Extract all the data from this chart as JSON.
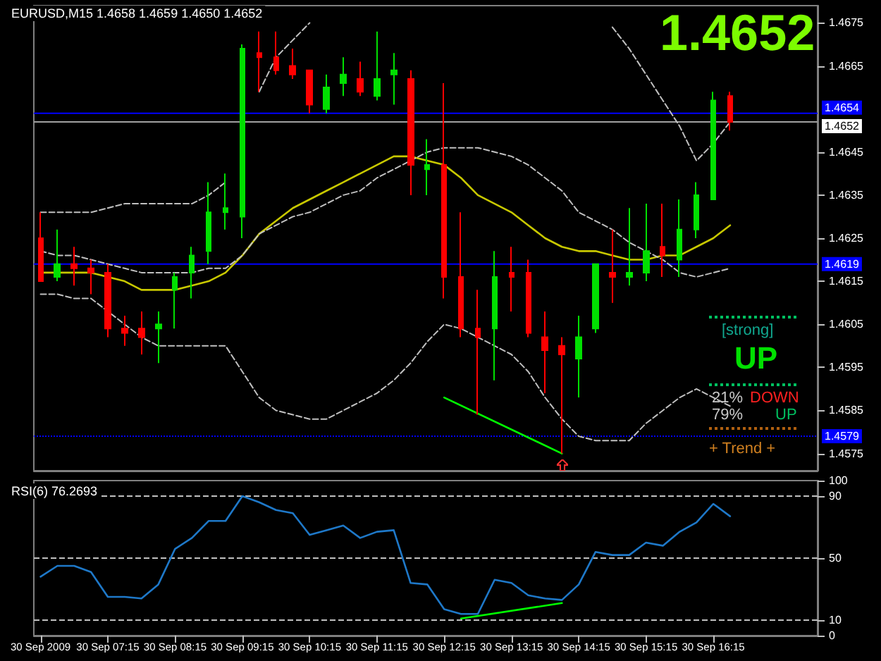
{
  "chart_data": [
    {
      "type": "candlestick",
      "title": "EURUSD,M15 1.4658 1.4659 1.4650 1.4652",
      "x": [
        "2009-09-30T06:15",
        "2009-09-30T06:30",
        "2009-09-30T06:45",
        "2009-09-30T07:00",
        "2009-09-30T07:15",
        "2009-09-30T07:30",
        "2009-09-30T07:45",
        "2009-09-30T08:00",
        "2009-09-30T08:15",
        "2009-09-30T08:30",
        "2009-09-30T08:45",
        "2009-09-30T09:00",
        "2009-09-30T09:15",
        "2009-09-30T09:30",
        "2009-09-30T09:45",
        "2009-09-30T10:00",
        "2009-09-30T10:15",
        "2009-09-30T10:30",
        "2009-09-30T10:45",
        "2009-09-30T11:00",
        "2009-09-30T11:15",
        "2009-09-30T11:30",
        "2009-09-30T11:45",
        "2009-09-30T12:00",
        "2009-09-30T12:15",
        "2009-09-30T12:30",
        "2009-09-30T12:45",
        "2009-09-30T13:00",
        "2009-09-30T13:15",
        "2009-09-30T13:30",
        "2009-09-30T13:45",
        "2009-09-30T14:00",
        "2009-09-30T14:15",
        "2009-09-30T14:30",
        "2009-09-30T14:45",
        "2009-09-30T15:00",
        "2009-09-30T15:15",
        "2009-09-30T15:30",
        "2009-09-30T15:45",
        "2009-09-30T16:00",
        "2009-09-30T16:15",
        "2009-09-30T16:30"
      ],
      "xlim": [
        "2009-09-30T06:09",
        "2009-09-30T17:48"
      ],
      "xticks": [
        {
          "value": "2009-09-30T06:15",
          "label": null
        },
        {
          "value": "2009-09-30T07:15",
          "label": null
        },
        {
          "value": "2009-09-30T08:15",
          "label": null
        },
        {
          "value": "2009-09-30T09:15",
          "label": null
        },
        {
          "value": "2009-09-30T10:15",
          "label": null
        },
        {
          "value": "2009-09-30T11:15",
          "label": null
        },
        {
          "value": "2009-09-30T12:15",
          "label": null
        },
        {
          "value": "2009-09-30T13:15",
          "label": null
        },
        {
          "value": "2009-09-30T14:15",
          "label": null
        },
        {
          "value": "2009-09-30T15:15",
          "label": null
        },
        {
          "value": "2009-09-30T16:15",
          "label": null
        }
      ],
      "tick_labels": "y",
      "ylim": [
        1.4571,
        1.4679
      ],
      "yticks": [
        1.4575,
        1.4585,
        1.4595,
        1.4605,
        1.4615,
        1.4625,
        1.4635,
        1.4645,
        1.4665,
        1.4675
      ],
      "series": [
        {
          "type": "line",
          "color": "#c8c800",
          "line_style": "solid",
          "values": [
            1.4617,
            1.4617,
            1.4617,
            1.4617,
            1.4616,
            1.4615,
            1.4613,
            1.4613,
            1.4613,
            1.4614,
            1.4615,
            1.4617,
            1.4621,
            1.4626,
            1.4629,
            1.4632,
            1.4634,
            1.4636,
            1.4638,
            1.464,
            1.4642,
            1.4644,
            1.4644,
            1.4643,
            1.4642,
            1.4639,
            1.4635,
            1.4633,
            1.4631,
            1.4628,
            1.4625,
            1.4623,
            1.4622,
            1.4622,
            1.4621,
            1.462,
            1.462,
            1.4621,
            1.4621,
            1.4623,
            1.4625,
            1.4628
          ]
        },
        {
          "type": "line",
          "color": "#c0c0c0",
          "line_style": "dashed",
          "values": [
            1.4631,
            1.4631,
            1.4631,
            1.4631,
            1.4632,
            1.4633,
            1.4633,
            1.4633,
            1.4633,
            1.4633,
            1.4635,
            1.4638,
            null,
            1.4659,
            1.4667,
            1.4671,
            1.4675,
            null,
            null,
            null,
            null,
            null,
            null,
            null,
            null,
            null,
            null,
            null,
            null,
            null,
            null,
            null,
            null,
            null,
            1.4674,
            1.4669,
            1.4663,
            1.4657,
            1.4651,
            1.4643,
            1.4647,
            1.4652
          ]
        },
        {
          "type": "line",
          "color": "#c0c0c0",
          "line_style": "dashed",
          "values": [
            1.4622,
            1.4621,
            1.4621,
            1.462,
            1.4619,
            1.4618,
            1.4617,
            1.4617,
            1.4617,
            1.4617,
            1.4618,
            1.4618,
            1.4621,
            1.4626,
            1.4628,
            1.463,
            1.4631,
            1.4633,
            1.4635,
            1.4636,
            1.4639,
            1.4641,
            1.4643,
            1.4645,
            1.4646,
            1.4646,
            1.4646,
            1.4645,
            1.4644,
            1.4642,
            1.4639,
            1.4636,
            1.4631,
            1.4629,
            1.4627,
            1.4624,
            1.4622,
            1.462,
            1.4617,
            1.4616,
            1.4617,
            1.4618
          ]
        },
        {
          "type": "line",
          "color": "#c0c0c0",
          "line_style": "dashed",
          "values": [
            1.4612,
            1.4612,
            1.4611,
            1.4611,
            1.4608,
            1.4605,
            1.4602,
            1.46,
            1.46,
            1.46,
            1.46,
            1.46,
            1.4594,
            1.4588,
            1.4585,
            1.4584,
            1.4583,
            1.4583,
            1.4585,
            1.4587,
            1.4589,
            1.4592,
            1.4596,
            1.4601,
            1.4605,
            1.4604,
            1.4602,
            1.46,
            1.4598,
            1.4594,
            1.4588,
            1.4583,
            1.4579,
            1.4578,
            1.4578,
            1.4578,
            1.4582,
            1.4585,
            1.4588,
            1.459,
            1.4588,
            1.4586
          ]
        },
        {
          "type": "line",
          "color": "#00ff00",
          "line_style": "solid",
          "x": [
            "2009-09-30T12:15",
            "2009-09-30T14:00"
          ],
          "values": [
            1.4588,
            1.4575
          ]
        },
        {
          "type": "candlestick",
          "ohlc": [
            [
              1.4625,
              1.4631,
              1.4615,
              1.4615
            ],
            [
              1.4616,
              1.4627,
              1.4615,
              1.4619
            ],
            [
              1.4619,
              1.4623,
              1.4614,
              1.4618
            ],
            [
              1.4618,
              1.462,
              1.4612,
              1.4617
            ],
            [
              1.4617,
              1.4619,
              1.4602,
              1.4604
            ],
            [
              1.4604,
              1.4607,
              1.46,
              1.4603
            ],
            [
              1.4604,
              1.4608,
              1.4598,
              1.4602
            ],
            [
              1.4604,
              1.4608,
              1.4596,
              1.4605
            ],
            [
              1.4613,
              1.4617,
              1.4604,
              1.4616
            ],
            [
              1.4617,
              1.4623,
              1.4611,
              1.4621
            ],
            [
              1.4622,
              1.4638,
              1.4619,
              1.4631
            ],
            [
              1.4631,
              1.464,
              1.4627,
              1.4632
            ],
            [
              1.463,
              1.467,
              1.4625,
              1.4669
            ],
            [
              1.4668,
              1.4673,
              1.4659,
              1.4667
            ],
            [
              1.4667,
              1.4673,
              1.4663,
              1.4664
            ],
            [
              1.4665,
              1.4669,
              1.4662,
              1.4663
            ],
            [
              1.4664,
              1.4664,
              1.4654,
              1.4656
            ],
            [
              1.4655,
              1.4663,
              1.4654,
              1.466
            ],
            [
              1.4661,
              1.4667,
              1.4658,
              1.4663
            ],
            [
              1.4662,
              1.4666,
              1.4658,
              1.4659
            ],
            [
              1.4658,
              1.4673,
              1.4657,
              1.4662
            ],
            [
              1.4663,
              1.4668,
              1.4656,
              1.4664
            ],
            [
              1.4662,
              1.4664,
              1.4635,
              1.4642
            ],
            [
              1.4641,
              1.4648,
              1.4635,
              1.4642
            ],
            [
              1.4642,
              1.4661,
              1.4611,
              1.4616
            ],
            [
              1.4616,
              1.4631,
              1.4602,
              1.4604
            ],
            [
              1.4604,
              1.4613,
              1.4584,
              1.4602
            ],
            [
              1.4604,
              1.4622,
              1.4592,
              1.4616
            ],
            [
              1.4617,
              1.4623,
              1.4608,
              1.4616
            ],
            [
              1.4617,
              1.462,
              1.4602,
              1.4603
            ],
            [
              1.4602,
              1.4608,
              1.4589,
              1.4599
            ],
            [
              1.46,
              1.4602,
              1.4575,
              1.4598
            ],
            [
              1.4597,
              1.4607,
              1.4588,
              1.4602
            ],
            [
              1.4604,
              1.4619,
              1.4603,
              1.4619
            ],
            [
              1.4617,
              1.4627,
              1.461,
              1.4616
            ],
            [
              1.4616,
              1.4632,
              1.4614,
              1.4617
            ],
            [
              1.4617,
              1.4633,
              1.4615,
              1.4622
            ],
            [
              1.4623,
              1.4633,
              1.4616,
              1.4621
            ],
            [
              1.462,
              1.4634,
              1.4616,
              1.4627
            ],
            [
              1.4627,
              1.4638,
              1.4625,
              1.4635
            ],
            [
              1.4634,
              1.4659,
              1.4634,
              1.4657
            ],
            [
              1.4658,
              1.4659,
              1.465,
              1.4652
            ]
          ],
          "colors": [
            "#ff0000",
            "#00e000",
            "#ff0000",
            "#ff0000",
            "#ff0000",
            "#ff0000",
            "#ff0000",
            "#00e000",
            "#00e000",
            "#00e000",
            "#00e000",
            "#00e000",
            "#00e000",
            "#ff0000",
            "#ff0000",
            "#ff0000",
            "#ff0000",
            "#00e000",
            "#00e000",
            "#ff0000",
            "#00e000",
            "#00e000",
            "#ff0000",
            "#00e000",
            "#ff0000",
            "#ff0000",
            "#ff0000",
            "#00e000",
            "#ff0000",
            "#ff0000",
            "#ff0000",
            "#ff0000",
            "#00e000",
            "#00e000",
            "#ff0000",
            "#00e000",
            "#00e000",
            "#ff0000",
            "#00e000",
            "#00e000",
            "#00e000",
            "#ff0000"
          ]
        }
      ],
      "ref_lines": [
        {
          "axis": "y",
          "value": 1.4654,
          "label": "1.4654",
          "color": "#0000ff"
        },
        {
          "axis": "y",
          "value": 1.4652,
          "label": "1.4652",
          "color": "#a0a0a0"
        },
        {
          "axis": "y",
          "value": 1.4619,
          "label": "1.4619",
          "color": "#0000ff"
        },
        {
          "axis": "y",
          "value": 1.4579,
          "label": "1.4579",
          "color": "#0000ff",
          "line_style": "dotted"
        }
      ],
      "annotations": [
        "1.4652",
        "[strong]",
        "UP",
        "21%",
        "DOWN",
        "79%",
        "UP",
        "+ Trend +"
      ]
    },
    {
      "type": "line",
      "title": "RSI(6) 76.2693",
      "x": [
        "2009-09-30T06:15",
        "2009-09-30T06:30",
        "2009-09-30T06:45",
        "2009-09-30T07:00",
        "2009-09-30T07:15",
        "2009-09-30T07:30",
        "2009-09-30T07:45",
        "2009-09-30T08:00",
        "2009-09-30T08:15",
        "2009-09-30T08:30",
        "2009-09-30T08:45",
        "2009-09-30T09:00",
        "2009-09-30T09:15",
        "2009-09-30T09:30",
        "2009-09-30T09:45",
        "2009-09-30T10:00",
        "2009-09-30T10:15",
        "2009-09-30T10:30",
        "2009-09-30T10:45",
        "2009-09-30T11:00",
        "2009-09-30T11:15",
        "2009-09-30T11:30",
        "2009-09-30T11:45",
        "2009-09-30T12:00",
        "2009-09-30T12:15",
        "2009-09-30T12:30",
        "2009-09-30T12:45",
        "2009-09-30T13:00",
        "2009-09-30T13:15",
        "2009-09-30T13:30",
        "2009-09-30T13:45",
        "2009-09-30T14:00",
        "2009-09-30T14:15",
        "2009-09-30T14:30",
        "2009-09-30T14:45",
        "2009-09-30T15:00",
        "2009-09-30T15:15",
        "2009-09-30T15:30",
        "2009-09-30T15:45",
        "2009-09-30T16:00",
        "2009-09-30T16:15",
        "2009-09-30T16:30"
      ],
      "xlim": [
        "2009-09-30T06:09",
        "2009-09-30T17:48"
      ],
      "xticks": [
        {
          "value": "2009-09-30T06:15",
          "label": "30 Sep 2009"
        },
        {
          "value": "2009-09-30T07:15",
          "label": "30 Sep 07:15"
        },
        {
          "value": "2009-09-30T08:15",
          "label": "30 Sep 08:15"
        },
        {
          "value": "2009-09-30T09:15",
          "label": "30 Sep 09:15"
        },
        {
          "value": "2009-09-30T10:15",
          "label": "30 Sep 10:15"
        },
        {
          "value": "2009-09-30T11:15",
          "label": "30 Sep 11:15"
        },
        {
          "value": "2009-09-30T12:15",
          "label": "30 Sep 12:15"
        },
        {
          "value": "2009-09-30T13:15",
          "label": "30 Sep 13:15"
        },
        {
          "value": "2009-09-30T14:15",
          "label": "30 Sep 14:15"
        },
        {
          "value": "2009-09-30T15:15",
          "label": "30 Sep 15:15"
        },
        {
          "value": "2009-09-30T16:15",
          "label": "30 Sep 16:15"
        }
      ],
      "ylim": [
        0,
        100
      ],
      "yticks": [
        0,
        10,
        50,
        90,
        100
      ],
      "series": [
        {
          "type": "line",
          "color": "#1e78c8",
          "line_style": "solid",
          "values": [
            38,
            45,
            45,
            41,
            25,
            25,
            24,
            33,
            56,
            63,
            74,
            74,
            90,
            86,
            81,
            79,
            65,
            68,
            71,
            63,
            67,
            68,
            34,
            33,
            17,
            14,
            14,
            36,
            34,
            26,
            24,
            23,
            33,
            54,
            52,
            52,
            60,
            58,
            67,
            73,
            85,
            77
          ]
        },
        {
          "type": "line",
          "color": "#00ff00",
          "line_style": "solid",
          "x": [
            "2009-09-30T12:30",
            "2009-09-30T14:00"
          ],
          "values": [
            11,
            21
          ]
        }
      ],
      "ref_lines": [
        {
          "axis": "y",
          "value": 10,
          "color": "#c0c0c0",
          "line_style": "dashed"
        },
        {
          "axis": "y",
          "value": 50,
          "color": "#c0c0c0",
          "line_style": "dashed"
        },
        {
          "axis": "y",
          "value": 90,
          "color": "#c0c0c0",
          "line_style": "dashed"
        }
      ]
    }
  ]
}
